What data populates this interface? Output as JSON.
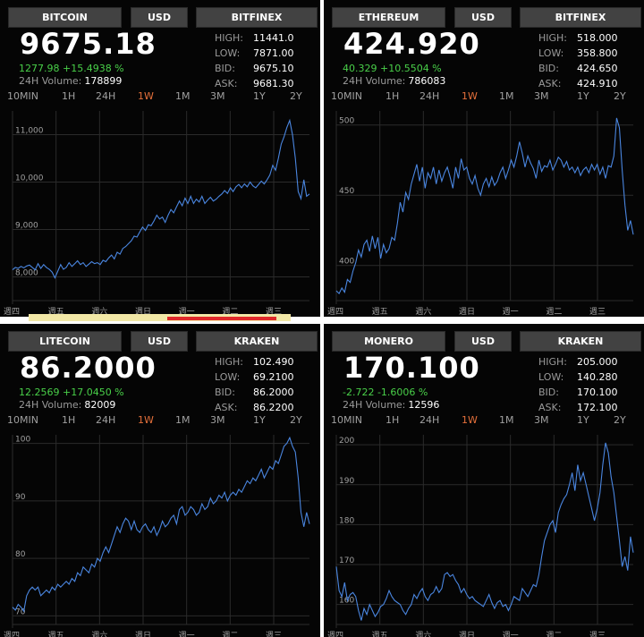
{
  "ranges": [
    "10MIN",
    "1H",
    "24H",
    "1W",
    "1M",
    "3M",
    "1Y",
    "2Y"
  ],
  "active_range": "1W",
  "ad": {
    "privacy_icon": "adchoices-triangle-icon",
    "close_icon": "close-icon"
  },
  "panels": [
    {
      "coin": "BITCOIN",
      "currency": "USD",
      "exchange": "BITFINEX",
      "price": "9675.18",
      "change": "1277.98 +15.4938 %",
      "volume_label": "24H Volume:",
      "volume": "178899",
      "high_label": "HIGH:",
      "high": "11441.0",
      "low_label": "LOW:",
      "low": "7871.00",
      "bid_label": "BID:",
      "bid": "9675.10",
      "ask_label": "ASK:",
      "ask": "9681.30",
      "x_labels": [
        "週四",
        "週五",
        "週六",
        "週日",
        "週一",
        "週二",
        "週三"
      ],
      "chart_data": {
        "type": "line",
        "ylim": [
          7500,
          11500
        ],
        "yticks": [
          8000,
          9000,
          10000,
          11000
        ],
        "ytick_labels": [
          "8,000",
          "9,000",
          "10,000",
          "11,000"
        ],
        "values": [
          8150,
          8200,
          8180,
          8220,
          8190,
          8230,
          8250,
          8200,
          8150,
          8280,
          8180,
          8260,
          8200,
          8160,
          8100,
          7980,
          8120,
          8260,
          8160,
          8200,
          8300,
          8220,
          8280,
          8340,
          8260,
          8300,
          8220,
          8270,
          8320,
          8280,
          8300,
          8260,
          8350,
          8320,
          8400,
          8460,
          8380,
          8520,
          8480,
          8600,
          8640,
          8700,
          8760,
          8860,
          8840,
          8950,
          9050,
          8980,
          9100,
          9080,
          9180,
          9300,
          9220,
          9260,
          9150,
          9300,
          9420,
          9350,
          9480,
          9600,
          9500,
          9660,
          9550,
          9700,
          9550,
          9640,
          9580,
          9700,
          9550,
          9620,
          9680,
          9600,
          9640,
          9700,
          9750,
          9820,
          9760,
          9880,
          9800,
          9900,
          9950,
          9880,
          9960,
          9900,
          10000,
          9920,
          9880,
          9950,
          10020,
          9960,
          10050,
          10150,
          10350,
          10250,
          10500,
          10800,
          10950,
          11150,
          11300,
          11000,
          10500,
          9800,
          9650,
          10050,
          9700,
          9750
        ]
      }
    },
    {
      "coin": "ETHEREUM",
      "currency": "USD",
      "exchange": "BITFINEX",
      "price": "424.920",
      "change": "40.329 +10.5504 %",
      "volume_label": "24H Volume:",
      "volume": "786083",
      "high_label": "HIGH:",
      "high": "518.000",
      "low_label": "LOW:",
      "low": "358.800",
      "bid_label": "BID:",
      "bid": "424.650",
      "ask_label": "ASK:",
      "ask": "424.910",
      "x_labels": [
        "週四",
        "週五",
        "週六",
        "週日",
        "週一",
        "週二",
        "週三"
      ],
      "chart_data": {
        "type": "line",
        "ylim": [
          375,
          510
        ],
        "yticks": [
          400,
          450,
          500
        ],
        "ytick_labels": [
          "400",
          "450",
          "500"
        ],
        "values": [
          382,
          380,
          384,
          381,
          390,
          388,
          396,
          402,
          411,
          406,
          415,
          418,
          410,
          421,
          412,
          420,
          405,
          415,
          409,
          412,
          420,
          418,
          430,
          445,
          438,
          452,
          447,
          458,
          465,
          472,
          460,
          470,
          455,
          466,
          462,
          470,
          458,
          468,
          460,
          466,
          470,
          463,
          455,
          470,
          462,
          476,
          468,
          470,
          462,
          458,
          464,
          455,
          450,
          458,
          462,
          456,
          463,
          457,
          460,
          466,
          470,
          462,
          468,
          475,
          470,
          478,
          488,
          480,
          470,
          478,
          473,
          469,
          462,
          475,
          467,
          471,
          470,
          475,
          468,
          472,
          477,
          475,
          470,
          474,
          468,
          470,
          466,
          470,
          464,
          468,
          470,
          466,
          472,
          468,
          472,
          465,
          470,
          462,
          471,
          470,
          478,
          505,
          498,
          468,
          443,
          425,
          432,
          422
        ]
      }
    },
    {
      "coin": "LITECOIN",
      "currency": "USD",
      "exchange": "KRAKEN",
      "price": "86.2000",
      "change": "12.2569 +17.0450 %",
      "volume_label": "24H Volume:",
      "volume": "82009",
      "high_label": "HIGH:",
      "high": "102.490",
      "low_label": "LOW:",
      "low": "69.2100",
      "bid_label": "BID:",
      "bid": "86.2000",
      "ask_label": "ASK:",
      "ask": "86.2200",
      "x_labels": [
        "週四",
        "週五",
        "週六",
        "週日",
        "週一",
        "週二",
        "週三"
      ],
      "chart_data": {
        "type": "line",
        "ylim": [
          68.5,
          101.5
        ],
        "yticks": [
          70,
          80,
          90,
          100
        ],
        "ytick_labels": [
          "70",
          "80",
          "90",
          "100"
        ],
        "values": [
          71.5,
          71.0,
          72.0,
          71.5,
          70.8,
          73.5,
          74.5,
          75.0,
          74.5,
          75.0,
          73.5,
          74.0,
          74.5,
          74.0,
          75.0,
          74.5,
          75.5,
          75.0,
          75.5,
          76.0,
          75.5,
          76.5,
          76.0,
          77.5,
          77.0,
          78.5,
          78.0,
          77.5,
          79.0,
          78.5,
          80.0,
          79.5,
          81.0,
          82.0,
          81.0,
          82.5,
          84.0,
          85.5,
          84.5,
          86.0,
          87.0,
          86.5,
          85.0,
          86.5,
          85.0,
          84.5,
          85.5,
          86.0,
          85.0,
          84.5,
          85.5,
          84.0,
          85.0,
          86.5,
          85.5,
          86.0,
          87.0,
          87.5,
          86.0,
          88.5,
          89.0,
          87.5,
          88.0,
          89.0,
          88.5,
          87.5,
          88.0,
          89.5,
          88.5,
          89.0,
          90.5,
          89.5,
          90.0,
          91.0,
          90.5,
          91.5,
          90.0,
          91.0,
          91.5,
          91.0,
          92.0,
          91.5,
          92.5,
          93.5,
          93.0,
          94.0,
          93.5,
          94.5,
          95.5,
          94.0,
          95.0,
          96.0,
          95.5,
          97.0,
          96.5,
          98.0,
          99.5,
          100.0,
          101.0,
          99.5,
          98.5,
          94.0,
          88.0,
          85.5,
          88.0,
          86.0
        ]
      }
    },
    {
      "coin": "MONERO",
      "currency": "USD",
      "exchange": "KRAKEN",
      "price": "170.100",
      "change": "-2.722 -1.6006 %",
      "volume_label": "24H Volume:",
      "volume": "12596",
      "high_label": "HIGH:",
      "high": "205.000",
      "low_label": "LOW:",
      "low": "140.280",
      "bid_label": "BID:",
      "bid": "170.100",
      "ask_label": "ASK:",
      "ask": "172.100",
      "x_labels": [
        "週四",
        "週五",
        "週六",
        "週日",
        "週一",
        "週二",
        "週三"
      ],
      "chart_data": {
        "type": "line",
        "ylim": [
          155,
          202.5
        ],
        "yticks": [
          160,
          170,
          180,
          190,
          200
        ],
        "ytick_labels": [
          "160",
          "170",
          "180",
          "190",
          "200"
        ],
        "values": [
          169.5,
          163.5,
          162.0,
          165.5,
          161.0,
          162.5,
          163.0,
          162.0,
          158.5,
          156.0,
          159.0,
          157.5,
          160.0,
          158.5,
          157.0,
          158.0,
          159.5,
          160.0,
          161.5,
          163.5,
          162.0,
          161.0,
          160.5,
          160.0,
          158.5,
          157.5,
          159.0,
          160.0,
          162.5,
          161.5,
          163.0,
          164.0,
          162.0,
          161.0,
          162.5,
          163.0,
          164.5,
          163.0,
          164.0,
          167.5,
          168.0,
          167.0,
          167.5,
          166.0,
          165.0,
          163.0,
          164.0,
          162.5,
          161.5,
          162.0,
          161.0,
          160.5,
          160.0,
          159.5,
          161.0,
          162.5,
          160.5,
          159.0,
          160.5,
          161.0,
          159.5,
          160.0,
          158.5,
          160.0,
          162.0,
          161.5,
          161.0,
          164.0,
          163.0,
          162.0,
          163.5,
          165.0,
          164.5,
          167.5,
          172.0,
          176.0,
          178.0,
          180.0,
          181.0,
          178.0,
          183.0,
          185.0,
          186.5,
          187.5,
          190.0,
          193.0,
          188.5,
          195.0,
          191.0,
          193.0,
          190.0,
          187.0,
          184.0,
          181.0,
          184.0,
          188.0,
          195.0,
          200.5,
          198.0,
          192.0,
          188.0,
          182.0,
          176.0,
          169.5,
          172.0,
          168.5,
          177.0,
          173.0
        ]
      }
    }
  ]
}
